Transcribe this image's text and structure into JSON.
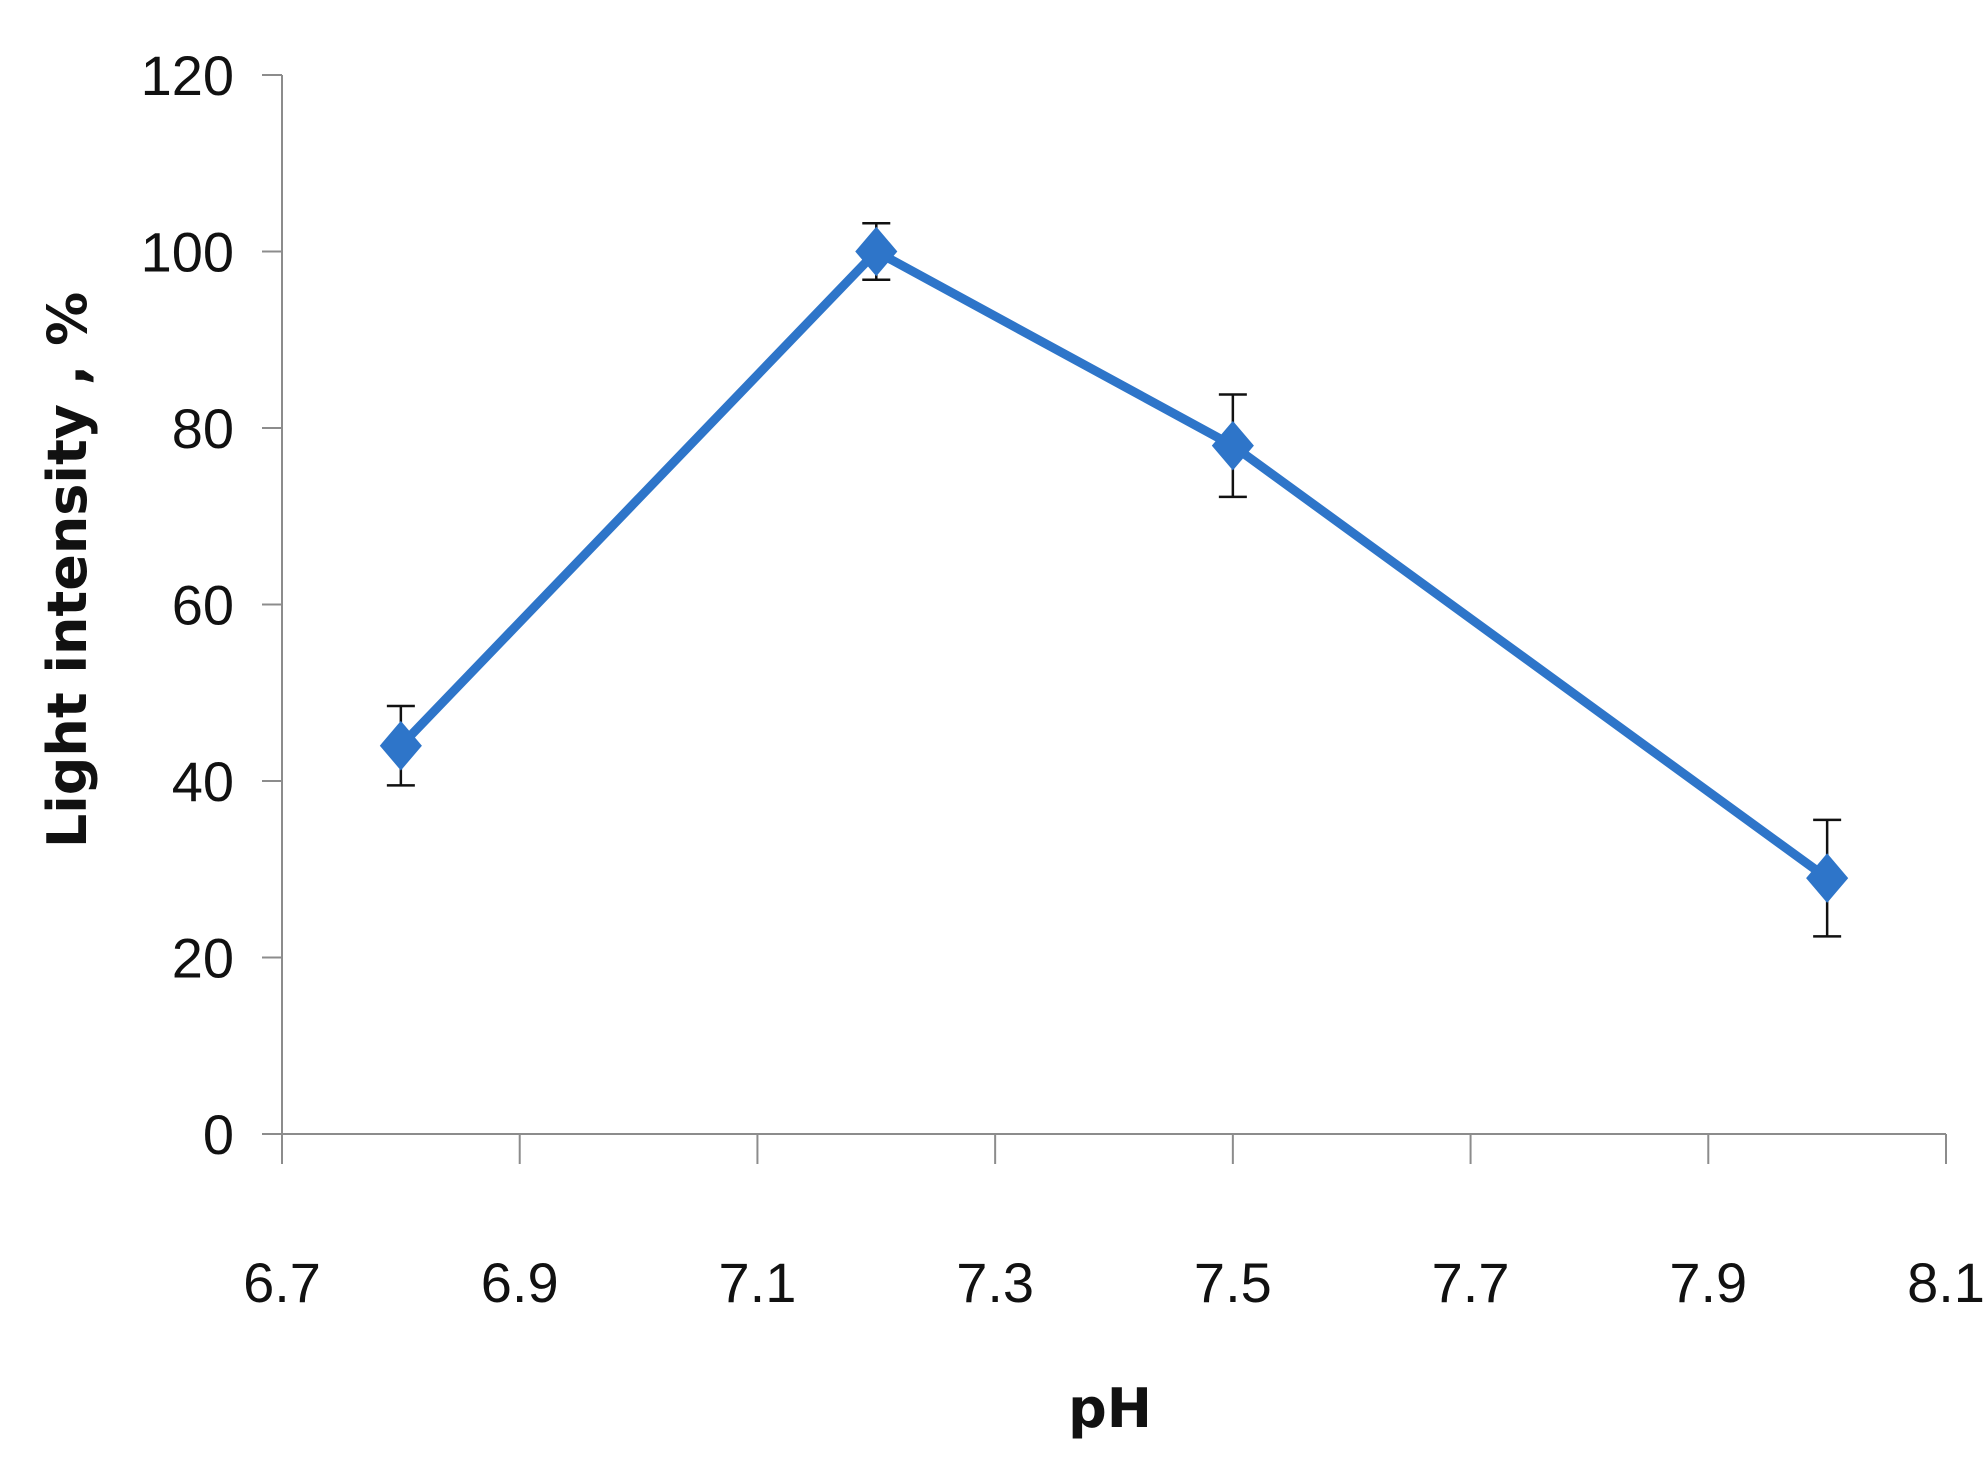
{
  "chart_data": {
    "type": "line",
    "title": "",
    "xlabel": "pH",
    "ylabel": "Light intensity , %",
    "xlim": [
      6.7,
      8.1
    ],
    "ylim": [
      0,
      120
    ],
    "x_ticks": [
      "6.7",
      "6.9",
      "7.1",
      "7.3",
      "7.5",
      "7.7",
      "7.9",
      "8.1"
    ],
    "y_ticks": [
      "0",
      "20",
      "40",
      "60",
      "80",
      "100",
      "120"
    ],
    "grid": false,
    "legend": "none",
    "series": [
      {
        "x": [
          6.8,
          7.2,
          7.5,
          8.0
        ],
        "values": [
          44,
          100,
          78,
          29
        ],
        "error": [
          4.5,
          3.2,
          5.8,
          6.6
        ],
        "color": "#2e75c9",
        "marker": "diamond"
      }
    ]
  }
}
